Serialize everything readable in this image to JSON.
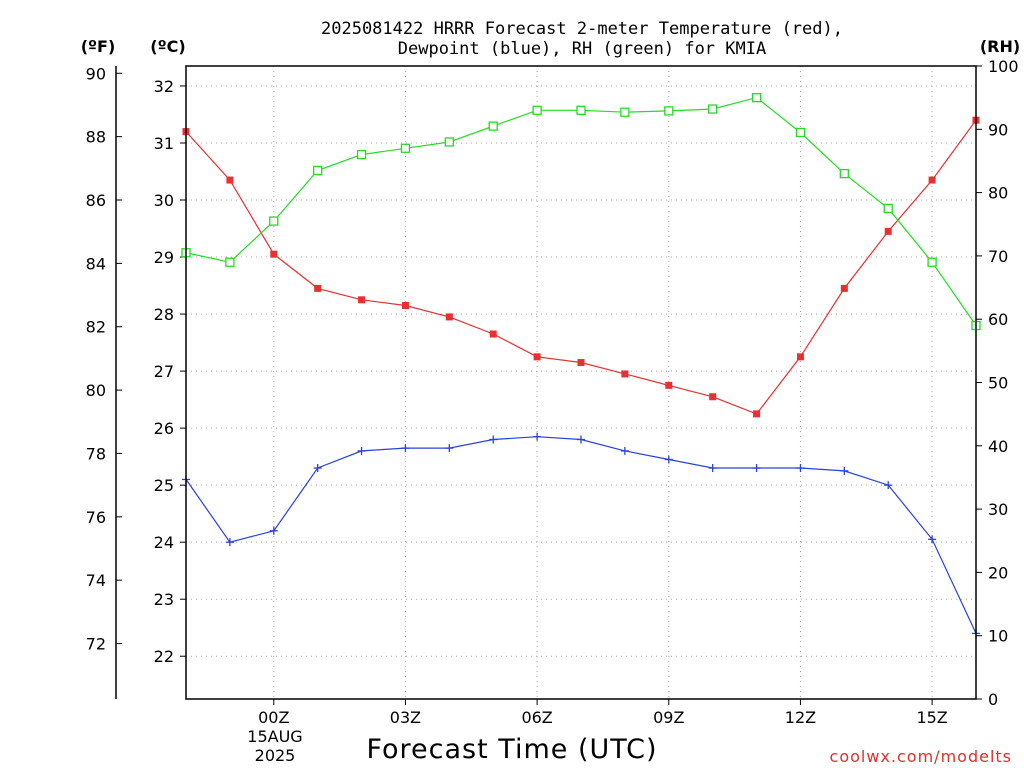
{
  "chart_data": {
    "type": "line",
    "title_line1": "2025081422 HRRR Forecast 2-meter Temperature (red),",
    "title_line2": "Dewpoint (blue), RH (green) for KMIA",
    "xlabel": "Forecast Time (UTC)",
    "credit": "coolwx.com/modelts",
    "unit_f": "(ºF)",
    "unit_c": "(ºC)",
    "unit_rh": "(RH)",
    "date_label_1": "15AUG",
    "date_label_2": "2025",
    "x_hours": [
      -2,
      -1,
      0,
      1,
      2,
      3,
      4,
      5,
      6,
      7,
      8,
      9,
      10,
      11,
      12,
      13,
      14,
      15,
      16
    ],
    "xlim": [
      -2,
      16
    ],
    "x_ticks": [
      {
        "hour": 0,
        "label": "00Z"
      },
      {
        "hour": 3,
        "label": "03Z"
      },
      {
        "hour": 6,
        "label": "06Z"
      },
      {
        "hour": 9,
        "label": "09Z"
      },
      {
        "hour": 12,
        "label": "12Z"
      },
      {
        "hour": 15,
        "label": "15Z"
      }
    ],
    "celsius_axis": {
      "ylim": [
        21.25,
        32.35
      ],
      "ticks": [
        22,
        23,
        24,
        25,
        26,
        27,
        28,
        29,
        30,
        31,
        32
      ]
    },
    "fahrenheit_axis": {
      "ticks": [
        72,
        74,
        76,
        78,
        80,
        82,
        84,
        86,
        88,
        90
      ]
    },
    "rh_axis": {
      "ylim": [
        0,
        100
      ],
      "ticks": [
        0,
        10,
        20,
        30,
        40,
        50,
        60,
        70,
        80,
        90,
        100
      ]
    },
    "series": [
      {
        "name": "Temperature",
        "color": "#e83030",
        "marker": "filled-square",
        "axis": "celsius",
        "values": [
          31.2,
          30.35,
          29.05,
          28.45,
          28.25,
          28.15,
          27.95,
          27.65,
          27.25,
          27.15,
          26.95,
          26.75,
          26.55,
          26.25,
          27.25,
          28.45,
          29.45,
          30.35,
          31.4
        ]
      },
      {
        "name": "Dewpoint",
        "color": "#2a40e0",
        "marker": "plus",
        "axis": "celsius",
        "values": [
          25.1,
          24.0,
          24.2,
          25.3,
          25.6,
          25.65,
          25.65,
          25.8,
          25.85,
          25.8,
          25.6,
          25.45,
          25.3,
          25.3,
          25.3,
          25.25,
          25.0,
          24.05,
          22.4
        ]
      },
      {
        "name": "RH",
        "color": "#22dd22",
        "marker": "open-square",
        "axis": "rh",
        "values": [
          70.5,
          69.0,
          75.5,
          83.5,
          86.0,
          87.0,
          88.0,
          90.5,
          93.0,
          93.0,
          92.7,
          92.9,
          93.2,
          95.0,
          89.5,
          83.0,
          77.5,
          69.0,
          59.0
        ]
      }
    ],
    "grid": true
  }
}
